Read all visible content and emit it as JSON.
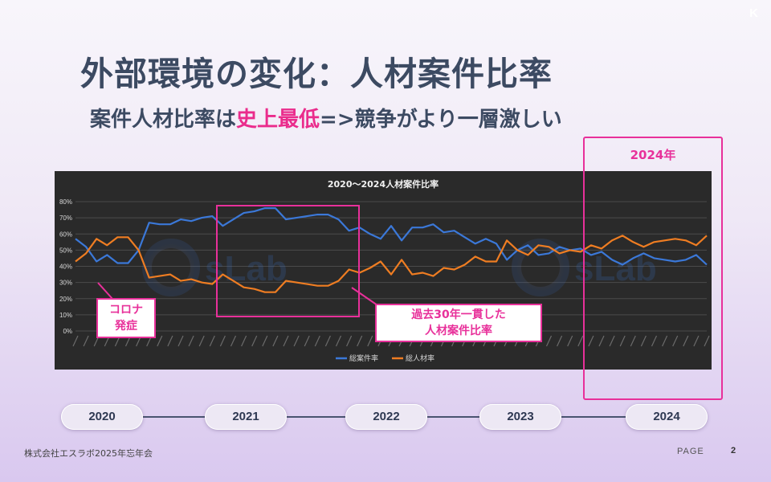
{
  "slide": {
    "corner_mark": "K",
    "title": "外部環境の変化：人材案件比率",
    "subtitle_prefix": "案件人材比率は",
    "subtitle_highlight": "史上最低",
    "subtitle_suffix": "=>競争がより一層激しい",
    "highlight_color": "#ea2c8c"
  },
  "annotations": {
    "corona_line1": "コロナ",
    "corona_line2": "発症",
    "lowest_line1": "過去30年一貫した",
    "lowest_line2": "人材案件比率",
    "year_2024_label": "2024年"
  },
  "timeline": {
    "years": [
      "2020",
      "2021",
      "2022",
      "2023",
      "2024"
    ]
  },
  "footer": {
    "company": "株式会社エスラボ2025年忘年会",
    "page_label": "PAGE",
    "page_number": "2"
  },
  "chart_data": {
    "type": "line",
    "title": "2020～2024人材案件比率",
    "watermark_text": "sLab",
    "ylim": [
      0,
      80
    ],
    "yticks": [
      "0%",
      "10%",
      "20%",
      "30%",
      "40%",
      "50%",
      "60%",
      "70%",
      "80%"
    ],
    "grid": true,
    "legend_position": "bottom",
    "series": [
      {
        "name": "総案件率",
        "color": "#3b78d8",
        "values": [
          57,
          52,
          43,
          47,
          42,
          42,
          50,
          67,
          66,
          66,
          69,
          68,
          70,
          71,
          65,
          69,
          73,
          74,
          76,
          76,
          69,
          70,
          71,
          72,
          72,
          69,
          62,
          64,
          60,
          57,
          65,
          56,
          64,
          64,
          66,
          61,
          62,
          58,
          54,
          57,
          54,
          44,
          50,
          53,
          47,
          48,
          52,
          50,
          51,
          47,
          49,
          44,
          41,
          45,
          48,
          45,
          44,
          43,
          44,
          47,
          41
        ]
      },
      {
        "name": "総人材率",
        "color": "#ef7d22",
        "values": [
          43,
          48,
          57,
          53,
          58,
          58,
          50,
          33,
          34,
          35,
          31,
          32,
          30,
          29,
          35,
          31,
          27,
          26,
          24,
          24,
          31,
          30,
          29,
          28,
          28,
          31,
          38,
          36,
          39,
          43,
          35,
          44,
          35,
          36,
          34,
          39,
          38,
          41,
          46,
          43,
          43,
          56,
          50,
          47,
          53,
          52,
          48,
          50,
          49,
          53,
          51,
          56,
          59,
          55,
          52,
          55,
          56,
          57,
          56,
          53,
          59
        ]
      }
    ]
  }
}
